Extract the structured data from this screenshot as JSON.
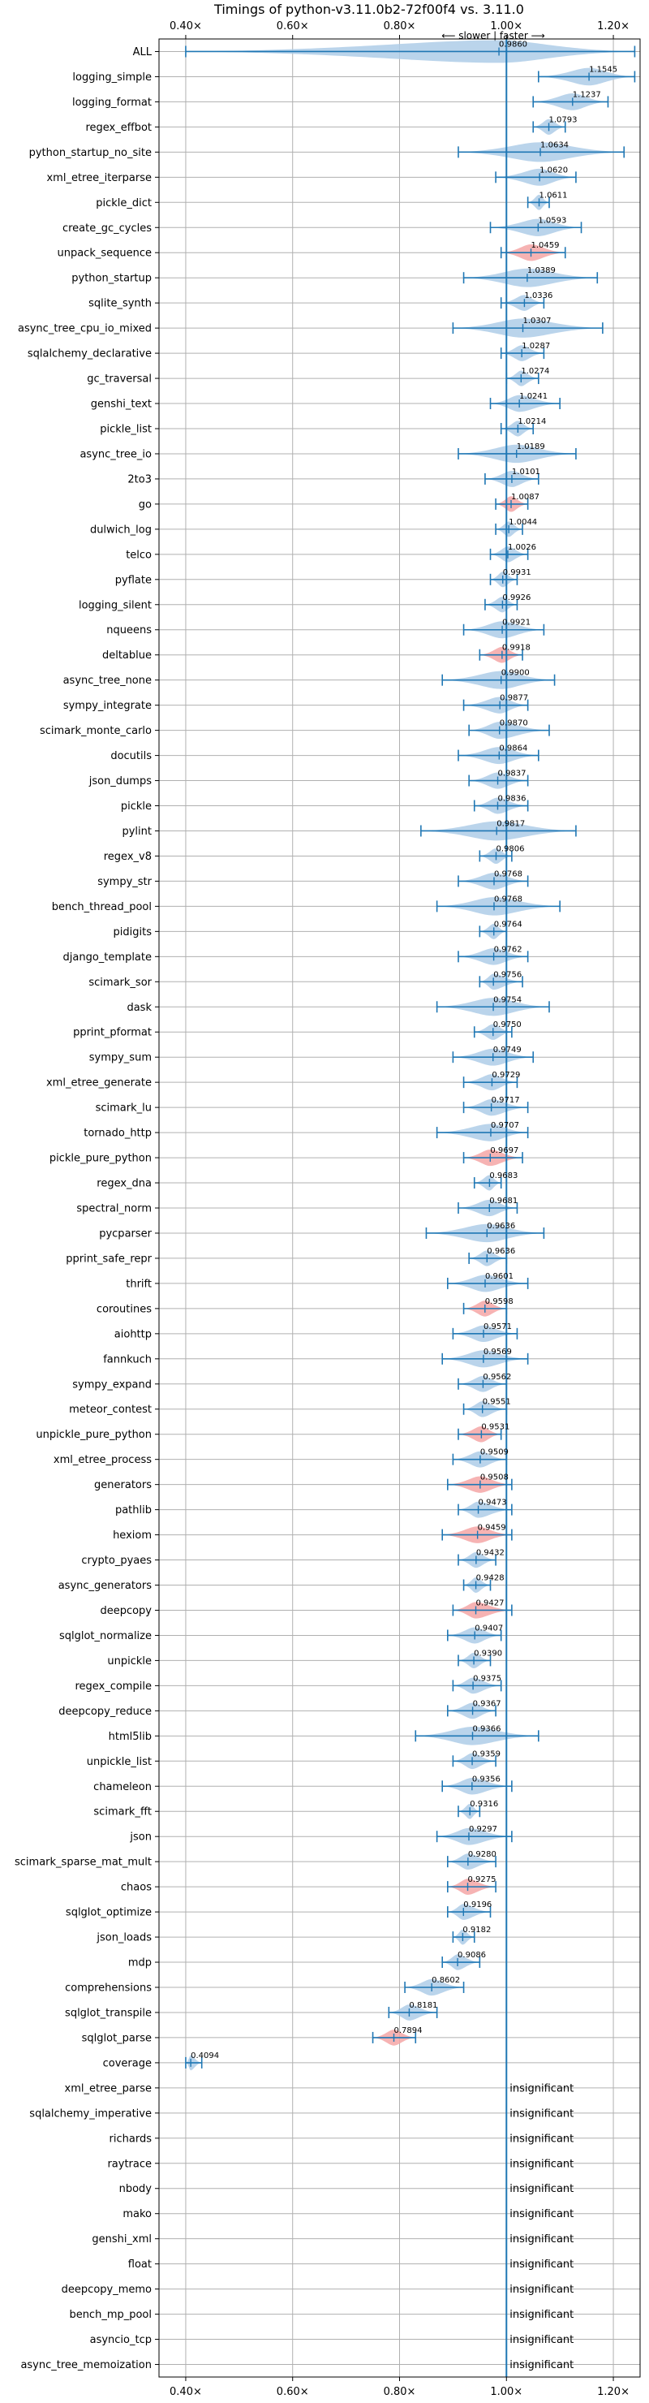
{
  "chart_data": {
    "type": "violin",
    "title": "Timings of python-v3.11.0b2-72f00f4 vs. 3.11.0",
    "direction_note": "⟵ slower | faster ⟶",
    "xlim": [
      0.35,
      1.25
    ],
    "xticks": [
      0.4,
      0.6,
      0.8,
      1.0,
      1.2
    ],
    "xtick_labels": [
      "0.40×",
      "0.60×",
      "0.80×",
      "1.00×",
      "1.20×"
    ],
    "reference_line": 1.0,
    "grid": true,
    "insignificant_label": "insignificant",
    "benchmarks": [
      {
        "name": "ALL",
        "value": 0.986,
        "label": "0.9860",
        "min": 0.4,
        "max": 1.24,
        "highlight": false
      },
      {
        "name": "logging_simple",
        "value": 1.1545,
        "label": "1.1545",
        "min": 1.06,
        "max": 1.24,
        "highlight": false
      },
      {
        "name": "logging_format",
        "value": 1.1237,
        "label": "1.1237",
        "min": 1.05,
        "max": 1.19,
        "highlight": false
      },
      {
        "name": "regex_effbot",
        "value": 1.0793,
        "label": "1.0793",
        "min": 1.05,
        "max": 1.11,
        "highlight": false
      },
      {
        "name": "python_startup_no_site",
        "value": 1.0634,
        "label": "1.0634",
        "min": 0.91,
        "max": 1.22,
        "highlight": false
      },
      {
        "name": "xml_etree_iterparse",
        "value": 1.062,
        "label": "1.0620",
        "min": 0.98,
        "max": 1.13,
        "highlight": false
      },
      {
        "name": "pickle_dict",
        "value": 1.0611,
        "label": "1.0611",
        "min": 1.04,
        "max": 1.08,
        "highlight": false
      },
      {
        "name": "create_gc_cycles",
        "value": 1.0593,
        "label": "1.0593",
        "min": 0.97,
        "max": 1.14,
        "highlight": false
      },
      {
        "name": "unpack_sequence",
        "value": 1.0459,
        "label": "1.0459",
        "min": 0.99,
        "max": 1.11,
        "highlight": true
      },
      {
        "name": "python_startup",
        "value": 1.0389,
        "label": "1.0389",
        "min": 0.92,
        "max": 1.17,
        "highlight": false
      },
      {
        "name": "sqlite_synth",
        "value": 1.0336,
        "label": "1.0336",
        "min": 0.99,
        "max": 1.07,
        "highlight": false
      },
      {
        "name": "async_tree_cpu_io_mixed",
        "value": 1.0307,
        "label": "1.0307",
        "min": 0.9,
        "max": 1.18,
        "highlight": false
      },
      {
        "name": "sqlalchemy_declarative",
        "value": 1.0287,
        "label": "1.0287",
        "min": 0.99,
        "max": 1.07,
        "highlight": false
      },
      {
        "name": "gc_traversal",
        "value": 1.0274,
        "label": "1.0274",
        "min": 1.0,
        "max": 1.06,
        "highlight": false
      },
      {
        "name": "genshi_text",
        "value": 1.0241,
        "label": "1.0241",
        "min": 0.97,
        "max": 1.1,
        "highlight": false
      },
      {
        "name": "pickle_list",
        "value": 1.0214,
        "label": "1.0214",
        "min": 0.99,
        "max": 1.05,
        "highlight": false
      },
      {
        "name": "async_tree_io",
        "value": 1.0189,
        "label": "1.0189",
        "min": 0.91,
        "max": 1.13,
        "highlight": false
      },
      {
        "name": "2to3",
        "value": 1.0101,
        "label": "1.0101",
        "min": 0.96,
        "max": 1.06,
        "highlight": false
      },
      {
        "name": "go",
        "value": 1.0087,
        "label": "1.0087",
        "min": 0.98,
        "max": 1.04,
        "highlight": true
      },
      {
        "name": "dulwich_log",
        "value": 1.0044,
        "label": "1.0044",
        "min": 0.98,
        "max": 1.03,
        "highlight": false
      },
      {
        "name": "telco",
        "value": 1.0026,
        "label": "1.0026",
        "min": 0.97,
        "max": 1.04,
        "highlight": false
      },
      {
        "name": "pyflate",
        "value": 0.9931,
        "label": "0.9931",
        "min": 0.97,
        "max": 1.02,
        "highlight": false
      },
      {
        "name": "logging_silent",
        "value": 0.9926,
        "label": "0.9926",
        "min": 0.96,
        "max": 1.02,
        "highlight": false
      },
      {
        "name": "nqueens",
        "value": 0.9921,
        "label": "0.9921",
        "min": 0.92,
        "max": 1.07,
        "highlight": false
      },
      {
        "name": "deltablue",
        "value": 0.9918,
        "label": "0.9918",
        "min": 0.95,
        "max": 1.03,
        "highlight": true
      },
      {
        "name": "async_tree_none",
        "value": 0.99,
        "label": "0.9900",
        "min": 0.88,
        "max": 1.09,
        "highlight": false
      },
      {
        "name": "sympy_integrate",
        "value": 0.9877,
        "label": "0.9877",
        "min": 0.92,
        "max": 1.04,
        "highlight": false
      },
      {
        "name": "scimark_monte_carlo",
        "value": 0.987,
        "label": "0.9870",
        "min": 0.93,
        "max": 1.08,
        "highlight": false
      },
      {
        "name": "docutils",
        "value": 0.9864,
        "label": "0.9864",
        "min": 0.91,
        "max": 1.06,
        "highlight": false
      },
      {
        "name": "json_dumps",
        "value": 0.9837,
        "label": "0.9837",
        "min": 0.93,
        "max": 1.04,
        "highlight": false
      },
      {
        "name": "pickle",
        "value": 0.9836,
        "label": "0.9836",
        "min": 0.94,
        "max": 1.04,
        "highlight": false
      },
      {
        "name": "pylint",
        "value": 0.9817,
        "label": "0.9817",
        "min": 0.84,
        "max": 1.13,
        "highlight": false
      },
      {
        "name": "regex_v8",
        "value": 0.9806,
        "label": "0.9806",
        "min": 0.95,
        "max": 1.01,
        "highlight": false
      },
      {
        "name": "sympy_str",
        "value": 0.9768,
        "label": "0.9768",
        "min": 0.91,
        "max": 1.04,
        "highlight": false
      },
      {
        "name": "bench_thread_pool",
        "value": 0.9768,
        "label": "0.9768",
        "min": 0.87,
        "max": 1.1,
        "highlight": false
      },
      {
        "name": "pidigits",
        "value": 0.9764,
        "label": "0.9764",
        "min": 0.95,
        "max": 1.0,
        "highlight": false
      },
      {
        "name": "django_template",
        "value": 0.9762,
        "label": "0.9762",
        "min": 0.91,
        "max": 1.04,
        "highlight": false
      },
      {
        "name": "scimark_sor",
        "value": 0.9756,
        "label": "0.9756",
        "min": 0.95,
        "max": 1.03,
        "highlight": false
      },
      {
        "name": "dask",
        "value": 0.9754,
        "label": "0.9754",
        "min": 0.87,
        "max": 1.08,
        "highlight": false
      },
      {
        "name": "pprint_pformat",
        "value": 0.975,
        "label": "0.9750",
        "min": 0.94,
        "max": 1.01,
        "highlight": false
      },
      {
        "name": "sympy_sum",
        "value": 0.9749,
        "label": "0.9749",
        "min": 0.9,
        "max": 1.05,
        "highlight": false
      },
      {
        "name": "xml_etree_generate",
        "value": 0.9729,
        "label": "0.9729",
        "min": 0.92,
        "max": 1.02,
        "highlight": false
      },
      {
        "name": "scimark_lu",
        "value": 0.9717,
        "label": "0.9717",
        "min": 0.92,
        "max": 1.04,
        "highlight": false
      },
      {
        "name": "tornado_http",
        "value": 0.9707,
        "label": "0.9707",
        "min": 0.87,
        "max": 1.04,
        "highlight": false
      },
      {
        "name": "pickle_pure_python",
        "value": 0.9697,
        "label": "0.9697",
        "min": 0.92,
        "max": 1.03,
        "highlight": true
      },
      {
        "name": "regex_dna",
        "value": 0.9683,
        "label": "0.9683",
        "min": 0.94,
        "max": 0.99,
        "highlight": false
      },
      {
        "name": "spectral_norm",
        "value": 0.9681,
        "label": "0.9681",
        "min": 0.91,
        "max": 1.02,
        "highlight": false
      },
      {
        "name": "pycparser",
        "value": 0.9636,
        "label": "0.9636",
        "min": 0.85,
        "max": 1.07,
        "highlight": false
      },
      {
        "name": "pprint_safe_repr",
        "value": 0.9636,
        "label": "0.9636",
        "min": 0.93,
        "max": 1.0,
        "highlight": false
      },
      {
        "name": "thrift",
        "value": 0.9601,
        "label": "0.9601",
        "min": 0.89,
        "max": 1.04,
        "highlight": false
      },
      {
        "name": "coroutines",
        "value": 0.9598,
        "label": "0.9598",
        "min": 0.92,
        "max": 1.0,
        "highlight": true
      },
      {
        "name": "aiohttp",
        "value": 0.9571,
        "label": "0.9571",
        "min": 0.9,
        "max": 1.02,
        "highlight": false
      },
      {
        "name": "fannkuch",
        "value": 0.9569,
        "label": "0.9569",
        "min": 0.88,
        "max": 1.04,
        "highlight": false
      },
      {
        "name": "sympy_expand",
        "value": 0.9562,
        "label": "0.9562",
        "min": 0.91,
        "max": 1.0,
        "highlight": false
      },
      {
        "name": "meteor_contest",
        "value": 0.9551,
        "label": "0.9551",
        "min": 0.92,
        "max": 1.0,
        "highlight": false
      },
      {
        "name": "unpickle_pure_python",
        "value": 0.9531,
        "label": "0.9531",
        "min": 0.91,
        "max": 0.99,
        "highlight": true
      },
      {
        "name": "xml_etree_process",
        "value": 0.9509,
        "label": "0.9509",
        "min": 0.9,
        "max": 1.0,
        "highlight": false
      },
      {
        "name": "generators",
        "value": 0.9508,
        "label": "0.9508",
        "min": 0.89,
        "max": 1.01,
        "highlight": true
      },
      {
        "name": "pathlib",
        "value": 0.9473,
        "label": "0.9473",
        "min": 0.91,
        "max": 1.01,
        "highlight": false
      },
      {
        "name": "hexiom",
        "value": 0.9459,
        "label": "0.9459",
        "min": 0.88,
        "max": 1.01,
        "highlight": true
      },
      {
        "name": "crypto_pyaes",
        "value": 0.9432,
        "label": "0.9432",
        "min": 0.91,
        "max": 0.98,
        "highlight": false
      },
      {
        "name": "async_generators",
        "value": 0.9428,
        "label": "0.9428",
        "min": 0.92,
        "max": 0.97,
        "highlight": false
      },
      {
        "name": "deepcopy",
        "value": 0.9427,
        "label": "0.9427",
        "min": 0.9,
        "max": 1.01,
        "highlight": true
      },
      {
        "name": "sqlglot_normalize",
        "value": 0.9407,
        "label": "0.9407",
        "min": 0.89,
        "max": 0.99,
        "highlight": false
      },
      {
        "name": "unpickle",
        "value": 0.939,
        "label": "0.9390",
        "min": 0.91,
        "max": 0.97,
        "highlight": false
      },
      {
        "name": "regex_compile",
        "value": 0.9375,
        "label": "0.9375",
        "min": 0.9,
        "max": 0.99,
        "highlight": false
      },
      {
        "name": "deepcopy_reduce",
        "value": 0.9367,
        "label": "0.9367",
        "min": 0.89,
        "max": 0.98,
        "highlight": false
      },
      {
        "name": "html5lib",
        "value": 0.9366,
        "label": "0.9366",
        "min": 0.83,
        "max": 1.06,
        "highlight": false
      },
      {
        "name": "unpickle_list",
        "value": 0.9359,
        "label": "0.9359",
        "min": 0.9,
        "max": 0.98,
        "highlight": false
      },
      {
        "name": "chameleon",
        "value": 0.9356,
        "label": "0.9356",
        "min": 0.88,
        "max": 1.01,
        "highlight": false
      },
      {
        "name": "scimark_fft",
        "value": 0.9316,
        "label": "0.9316",
        "min": 0.91,
        "max": 0.95,
        "highlight": false
      },
      {
        "name": "json",
        "value": 0.9297,
        "label": "0.9297",
        "min": 0.87,
        "max": 1.01,
        "highlight": false
      },
      {
        "name": "scimark_sparse_mat_mult",
        "value": 0.928,
        "label": "0.9280",
        "min": 0.89,
        "max": 0.98,
        "highlight": false
      },
      {
        "name": "chaos",
        "value": 0.9275,
        "label": "0.9275",
        "min": 0.89,
        "max": 0.98,
        "highlight": true
      },
      {
        "name": "sqlglot_optimize",
        "value": 0.9196,
        "label": "0.9196",
        "min": 0.89,
        "max": 0.97,
        "highlight": false
      },
      {
        "name": "json_loads",
        "value": 0.9182,
        "label": "0.9182",
        "min": 0.9,
        "max": 0.94,
        "highlight": false
      },
      {
        "name": "mdp",
        "value": 0.9086,
        "label": "0.9086",
        "min": 0.88,
        "max": 0.95,
        "highlight": false
      },
      {
        "name": "comprehensions",
        "value": 0.8602,
        "label": "0.8602",
        "min": 0.81,
        "max": 0.92,
        "highlight": false
      },
      {
        "name": "sqlglot_transpile",
        "value": 0.8181,
        "label": "0.8181",
        "min": 0.78,
        "max": 0.87,
        "highlight": false
      },
      {
        "name": "sqlglot_parse",
        "value": 0.7894,
        "label": "0.7894",
        "min": 0.75,
        "max": 0.83,
        "highlight": true
      },
      {
        "name": "coverage",
        "value": 0.4094,
        "label": "0.4094",
        "min": 0.4,
        "max": 0.43,
        "highlight": false
      },
      {
        "name": "xml_etree_parse",
        "insignificant": true
      },
      {
        "name": "sqlalchemy_imperative",
        "insignificant": true
      },
      {
        "name": "richards",
        "insignificant": true
      },
      {
        "name": "raytrace",
        "insignificant": true
      },
      {
        "name": "nbody",
        "insignificant": true
      },
      {
        "name": "mako",
        "insignificant": true
      },
      {
        "name": "genshi_xml",
        "insignificant": true
      },
      {
        "name": "float",
        "insignificant": true
      },
      {
        "name": "deepcopy_memo",
        "insignificant": true
      },
      {
        "name": "bench_mp_pool",
        "insignificant": true
      },
      {
        "name": "asyncio_tcp",
        "insignificant": true
      },
      {
        "name": "async_tree_memoization",
        "insignificant": true
      }
    ],
    "colors": {
      "violin": "#aecde8",
      "violin_highlight": "#f4a6a6",
      "line": "#1f77b4",
      "grid": "#b0b0b0"
    }
  }
}
